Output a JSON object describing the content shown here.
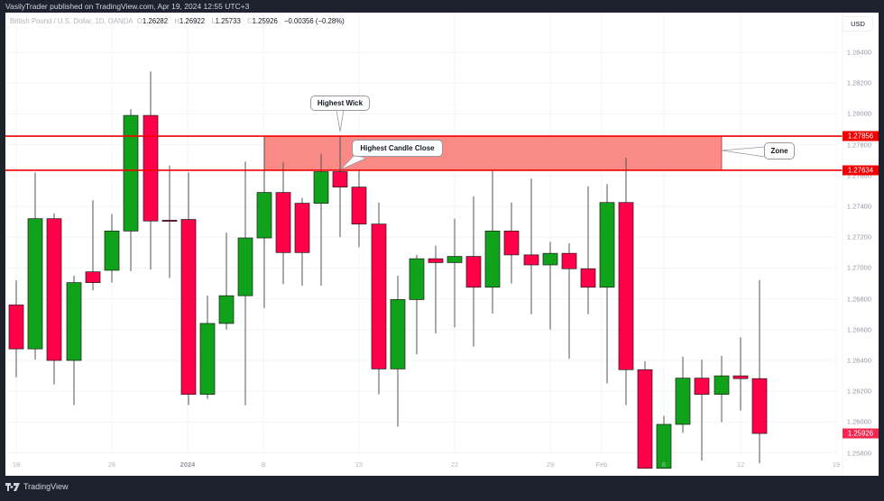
{
  "header": {
    "published": "VasilyTrader published on TradingView.com, Apr 19, 2024 12:55 UTC+3"
  },
  "legend": {
    "symbol": "British Pound / U.S. Dollar, 1D, OANDA",
    "o_label": "O",
    "o": "1.26282",
    "h_label": "H",
    "h": "1.26922",
    "l_label": "L",
    "l": "1.25733",
    "c_label": "C",
    "c": "1.25926",
    "change": "−0.00356 (−0.28%)"
  },
  "currency_button": "USD",
  "footer": {
    "brand": "TradingView"
  },
  "colors": {
    "up": "#11a21b",
    "down": "#ff0049",
    "zone_fill": "#f98a85",
    "level_line": "#f20000",
    "price_tag": "#f20000",
    "last_price_tag": "#f2264f"
  },
  "annotations": {
    "highest_wick": "Highest Wick",
    "highest_close": "Highest Candle Close",
    "zone": "Zone"
  },
  "price_tags": {
    "upper": "1.27856",
    "lower": "1.27634",
    "last": "1.25926"
  },
  "chart_data": {
    "type": "candlestick",
    "title": "British Pound / U.S. Dollar, 1D, OANDA",
    "xlabel": "",
    "ylabel": "USD",
    "ylim": [
      1.2567,
      1.2852
    ],
    "y_ticks": [
      "1.28400",
      "1.28200",
      "1.28000",
      "1.27800",
      "1.27600",
      "1.27400",
      "1.27200",
      "1.27000",
      "1.26800",
      "1.26600",
      "1.26400",
      "1.26200",
      "1.26000",
      "1.25800"
    ],
    "x_ticks": [
      {
        "label": "18",
        "x": 18
      },
      {
        "label": "26",
        "x": 124
      },
      {
        "label": "2024",
        "x": 208,
        "bold": true
      },
      {
        "label": "8",
        "x": 292
      },
      {
        "label": "15",
        "x": 398
      },
      {
        "label": "22",
        "x": 504
      },
      {
        "label": "29",
        "x": 610
      },
      {
        "label": "Feb",
        "x": 667
      },
      {
        "label": "6",
        "x": 736
      },
      {
        "label": "12",
        "x": 821
      },
      {
        "label": "19",
        "x": 927
      }
    ],
    "levels": [
      {
        "name": "Zone top",
        "price": 1.27856
      },
      {
        "name": "Zone bottom",
        "price": 1.27634
      }
    ],
    "zone": {
      "from_index": 13,
      "to_index": 36,
      "top": 1.27856,
      "bottom": 1.27634
    },
    "candles": [
      {
        "x": 18,
        "o": 1.2676,
        "h": 1.2692,
        "l": 1.2629,
        "c": 1.26475
      },
      {
        "x": 39,
        "o": 1.26475,
        "h": 1.2762,
        "l": 1.26405,
        "c": 1.2732
      },
      {
        "x": 60,
        "o": 1.2732,
        "h": 1.27355,
        "l": 1.26245,
        "c": 1.264
      },
      {
        "x": 82,
        "o": 1.264,
        "h": 1.2695,
        "l": 1.2611,
        "c": 1.26905
      },
      {
        "x": 103,
        "o": 1.26975,
        "h": 1.2744,
        "l": 1.26855,
        "c": 1.26905
      },
      {
        "x": 124,
        "o": 1.26985,
        "h": 1.2735,
        "l": 1.26905,
        "c": 1.2724
      },
      {
        "x": 145,
        "o": 1.2724,
        "h": 1.2803,
        "l": 1.2698,
        "c": 1.2799
      },
      {
        "x": 167,
        "o": 1.2799,
        "h": 1.28275,
        "l": 1.2699,
        "c": 1.27305
      },
      {
        "x": 188,
        "o": 1.2731,
        "h": 1.27665,
        "l": 1.26935,
        "c": 1.27305
      },
      {
        "x": 209,
        "o": 1.27315,
        "h": 1.2762,
        "l": 1.2611,
        "c": 1.2618
      },
      {
        "x": 230,
        "o": 1.2618,
        "h": 1.2682,
        "l": 1.2615,
        "c": 1.2664
      },
      {
        "x": 251,
        "o": 1.2664,
        "h": 1.2723,
        "l": 1.266,
        "c": 1.2682
      },
      {
        "x": 272,
        "o": 1.2682,
        "h": 1.2769,
        "l": 1.2611,
        "c": 1.27195
      },
      {
        "x": 293,
        "o": 1.27195,
        "h": 1.27845,
        "l": 1.2674,
        "c": 1.2749
      },
      {
        "x": 314,
        "o": 1.2749,
        "h": 1.27685,
        "l": 1.26895,
        "c": 1.271
      },
      {
        "x": 335,
        "o": 1.2742,
        "h": 1.27455,
        "l": 1.26885,
        "c": 1.271
      },
      {
        "x": 356,
        "o": 1.2742,
        "h": 1.2774,
        "l": 1.26885,
        "c": 1.27625
      },
      {
        "x": 377,
        "o": 1.27625,
        "h": 1.27856,
        "l": 1.272,
        "c": 1.27525
      },
      {
        "x": 398,
        "o": 1.27525,
        "h": 1.2764,
        "l": 1.27135,
        "c": 1.27285
      },
      {
        "x": 420,
        "o": 1.27285,
        "h": 1.27425,
        "l": 1.2618,
        "c": 1.26345
      },
      {
        "x": 441,
        "o": 1.26345,
        "h": 1.2695,
        "l": 1.2597,
        "c": 1.26795
      },
      {
        "x": 462,
        "o": 1.26795,
        "h": 1.27085,
        "l": 1.2644,
        "c": 1.2706
      },
      {
        "x": 483,
        "o": 1.2706,
        "h": 1.27145,
        "l": 1.26575,
        "c": 1.27035
      },
      {
        "x": 504,
        "o": 1.27035,
        "h": 1.2732,
        "l": 1.26615,
        "c": 1.27075
      },
      {
        "x": 525,
        "o": 1.27075,
        "h": 1.27465,
        "l": 1.2649,
        "c": 1.26875
      },
      {
        "x": 546,
        "o": 1.26875,
        "h": 1.2763,
        "l": 1.26705,
        "c": 1.2724
      },
      {
        "x": 567,
        "o": 1.2724,
        "h": 1.27425,
        "l": 1.269,
        "c": 1.27085
      },
      {
        "x": 589,
        "o": 1.27085,
        "h": 1.2758,
        "l": 1.267,
        "c": 1.2702
      },
      {
        "x": 610,
        "o": 1.2702,
        "h": 1.2717,
        "l": 1.266,
        "c": 1.27095
      },
      {
        "x": 631,
        "o": 1.27095,
        "h": 1.2716,
        "l": 1.2641,
        "c": 1.26995
      },
      {
        "x": 652,
        "o": 1.26995,
        "h": 1.2753,
        "l": 1.267,
        "c": 1.26875
      },
      {
        "x": 673,
        "o": 1.26875,
        "h": 1.27545,
        "l": 1.2625,
        "c": 1.27425
      },
      {
        "x": 694,
        "o": 1.27425,
        "h": 1.27715,
        "l": 1.2611,
        "c": 1.2634
      },
      {
        "x": 715,
        "o": 1.2634,
        "h": 1.26395,
        "l": 1.257,
        "c": 1.257
      },
      {
        "x": 736,
        "o": 1.257,
        "h": 1.2604,
        "l": 1.257,
        "c": 1.25985
      },
      {
        "x": 757,
        "o": 1.25985,
        "h": 1.26425,
        "l": 1.2593,
        "c": 1.26285
      },
      {
        "x": 778,
        "o": 1.26285,
        "h": 1.26405,
        "l": 1.2575,
        "c": 1.2618
      },
      {
        "x": 800,
        "o": 1.2618,
        "h": 1.2643,
        "l": 1.26,
        "c": 1.263
      },
      {
        "x": 821,
        "o": 1.263,
        "h": 1.2655,
        "l": 1.26075,
        "c": 1.26282
      },
      {
        "x": 842,
        "o": 1.26282,
        "h": 1.26922,
        "l": 1.25733,
        "c": 1.25926
      }
    ]
  }
}
